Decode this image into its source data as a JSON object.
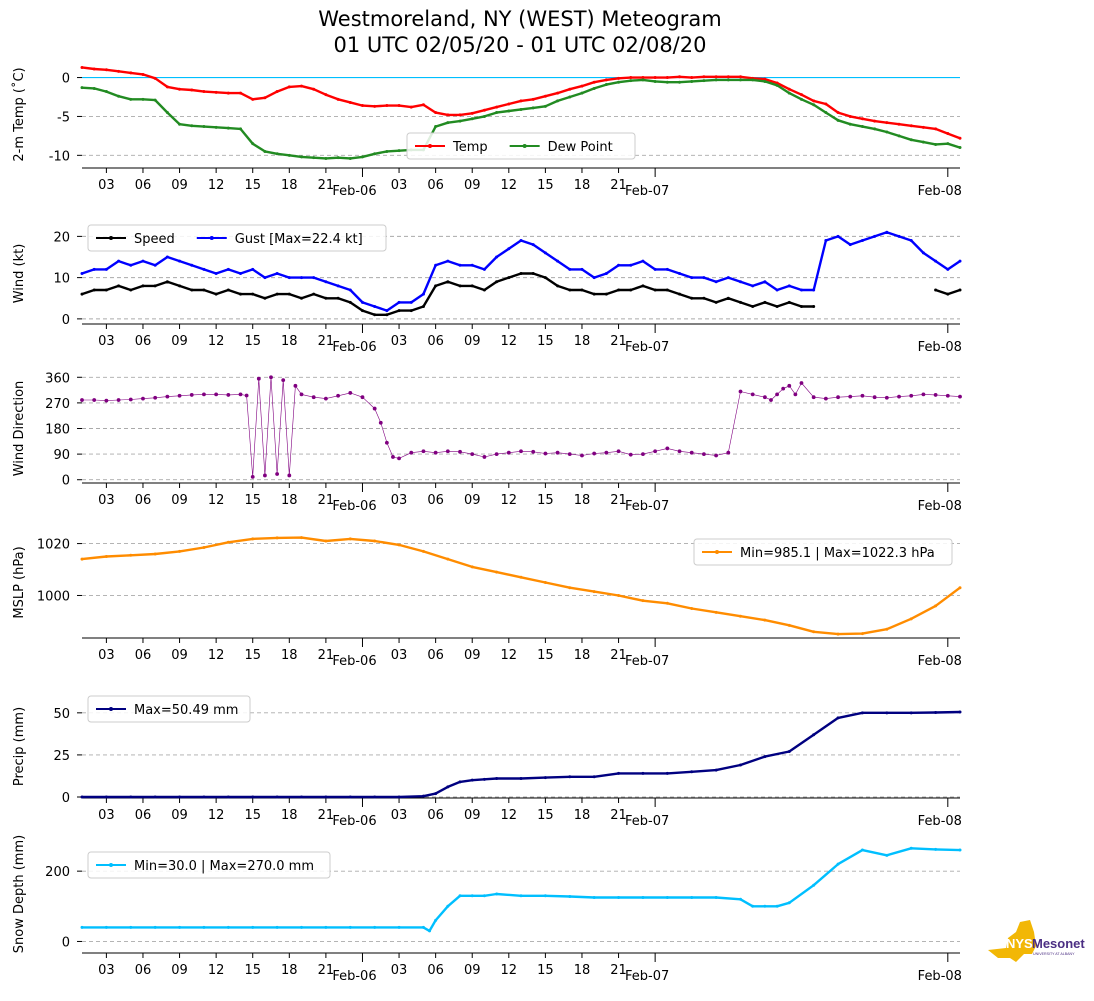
{
  "title_line1": "Westmoreland, NY (WEST) Meteogram",
  "title_line2": "01 UTC 02/05/20 - 01 UTC 02/08/20",
  "x_axis": {
    "hour_ticks": [
      "03",
      "06",
      "09",
      "12",
      "15",
      "18",
      "21",
      "03",
      "06",
      "09",
      "12",
      "15",
      "18",
      "21"
    ],
    "hour_tick_offsets_h": [
      2,
      5,
      8,
      11,
      14,
      17,
      20,
      26,
      29,
      32,
      35,
      38,
      41,
      44
    ],
    "date_ticks": [
      "Feb-06",
      "Feb-07",
      "Feb-08"
    ],
    "date_tick_offsets_h": [
      23,
      47,
      71
    ],
    "range_h": [
      0,
      72
    ]
  },
  "colors": {
    "temp": "#ff0000",
    "dew": "#228b22",
    "speed": "#000000",
    "gust": "#0000ff",
    "dir": "#800080",
    "mslp": "#ff8c00",
    "precip": "#000080",
    "snow": "#00bfff",
    "freeze": "#00bfff",
    "grid": "#aaaaaa"
  },
  "logo": {
    "text_main": "Mesonet",
    "text_nys": "NYS",
    "text_sub": "UNIVERSITY AT ALBANY"
  },
  "chart_data": [
    {
      "type": "line",
      "ylabel": "2-m Temp ($^\\circ$C)",
      "ylabel_display": "2-m Temp (˚C)",
      "ylim": [
        -11.5,
        2
      ],
      "yticks": [
        0,
        -5,
        -10
      ],
      "reference_line": 0,
      "legend": {
        "position": "lower-center",
        "entries": [
          "Temp",
          "Dew Point"
        ]
      },
      "x": [
        0,
        1,
        2,
        3,
        4,
        5,
        6,
        7,
        8,
        9,
        10,
        11,
        12,
        13,
        14,
        15,
        16,
        17,
        18,
        19,
        20,
        21,
        22,
        23,
        24,
        25,
        26,
        27,
        28,
        29,
        30,
        31,
        32,
        33,
        34,
        35,
        36,
        37,
        38,
        39,
        40,
        41,
        42,
        43,
        44,
        45,
        46,
        47,
        48,
        49,
        50,
        51,
        52,
        53,
        54,
        55,
        56,
        57,
        58,
        59,
        60,
        61,
        62,
        63,
        64,
        65,
        66,
        67,
        68,
        69,
        70,
        71,
        72
      ],
      "series": [
        {
          "name": "Temp",
          "values": [
            1.3,
            1.1,
            1.0,
            0.8,
            0.6,
            0.4,
            -0.1,
            -1.2,
            -1.5,
            -1.6,
            -1.8,
            -1.9,
            -2.0,
            -2.0,
            -2.8,
            -2.6,
            -1.8,
            -1.2,
            -1.1,
            -1.5,
            -2.2,
            -2.8,
            -3.2,
            -3.6,
            -3.7,
            -3.6,
            -3.6,
            -3.8,
            -3.5,
            -4.5,
            -4.8,
            -4.8,
            -4.6,
            -4.2,
            -3.8,
            -3.4,
            -3.0,
            -2.8,
            -2.4,
            -2.0,
            -1.5,
            -1.1,
            -0.6,
            -0.3,
            -0.1,
            0.0,
            0.0,
            0.0,
            0.0,
            0.1,
            0.0,
            0.1,
            0.1,
            0.1,
            0.1,
            -0.1,
            -0.2,
            -0.7,
            -1.5,
            -2.2,
            -3.0,
            -3.4,
            -4.5,
            -5.0,
            -5.3,
            -5.6,
            -5.8,
            -6.0,
            -6.2,
            -6.4,
            -6.6,
            -7.2,
            -7.8
          ]
        },
        {
          "name": "Dew Point",
          "values": [
            -1.3,
            -1.4,
            -1.8,
            -2.4,
            -2.8,
            -2.8,
            -2.9,
            -4.5,
            -6.0,
            -6.2,
            -6.3,
            -6.4,
            -6.5,
            -6.6,
            -8.5,
            -9.5,
            -9.8,
            -10.0,
            -10.2,
            -10.3,
            -10.4,
            -10.3,
            -10.4,
            -10.2,
            -9.8,
            -9.5,
            -9.4,
            -9.3,
            -9.3,
            -6.3,
            -5.8,
            -5.6,
            -5.3,
            -5.0,
            -4.5,
            -4.3,
            -4.1,
            -3.9,
            -3.7,
            -3.0,
            -2.5,
            -2.0,
            -1.4,
            -0.9,
            -0.6,
            -0.4,
            -0.3,
            -0.5,
            -0.6,
            -0.6,
            -0.5,
            -0.4,
            -0.3,
            -0.3,
            -0.3,
            -0.3,
            -0.5,
            -1.0,
            -2.0,
            -2.8,
            -3.5,
            -4.5,
            -5.5,
            -6.0,
            -6.3,
            -6.6,
            -7.0,
            -7.5,
            -8.0,
            -8.3,
            -8.6,
            -8.5,
            -9.0
          ]
        }
      ]
    },
    {
      "type": "line",
      "ylabel": "Wind (kt)",
      "ylim": [
        -1,
        23
      ],
      "yticks": [
        0,
        10,
        20
      ],
      "legend": {
        "position": "top-left",
        "entries": [
          "Speed",
          "Gust [Max=22.4 kt]"
        ]
      },
      "x": [
        0,
        1,
        2,
        3,
        4,
        5,
        6,
        7,
        8,
        9,
        10,
        11,
        12,
        13,
        14,
        15,
        16,
        17,
        18,
        19,
        20,
        21,
        22,
        23,
        24,
        25,
        26,
        27,
        28,
        29,
        30,
        31,
        32,
        33,
        34,
        35,
        36,
        37,
        38,
        39,
        40,
        41,
        42,
        43,
        44,
        45,
        46,
        47,
        48,
        49,
        50,
        51,
        52,
        53,
        54,
        55,
        56,
        57,
        58,
        59,
        60,
        61,
        62,
        63,
        64,
        65,
        66,
        67,
        68,
        69,
        70,
        71,
        72
      ],
      "series": [
        {
          "name": "Speed",
          "values": [
            6,
            7,
            7,
            8,
            7,
            8,
            8,
            9,
            8,
            7,
            7,
            6,
            7,
            6,
            6,
            5,
            6,
            6,
            5,
            6,
            5,
            5,
            4,
            2,
            1,
            1,
            2,
            2,
            3,
            8,
            9,
            8,
            8,
            7,
            9,
            10,
            11,
            11,
            10,
            8,
            7,
            7,
            6,
            6,
            7,
            7,
            8,
            7,
            7,
            6,
            5,
            5,
            4,
            5,
            4,
            3,
            4,
            3,
            4,
            3,
            3,
            null,
            null,
            null,
            null,
            null,
            null,
            null,
            null,
            null,
            7,
            6,
            7
          ]
        },
        {
          "name": "Gust [Max=22.4 kt]",
          "values": [
            11,
            12,
            12,
            14,
            13,
            14,
            13,
            15,
            14,
            13,
            12,
            11,
            12,
            11,
            12,
            10,
            11,
            10,
            10,
            10,
            9,
            8,
            7,
            4,
            3,
            2,
            4,
            4,
            6,
            13,
            14,
            13,
            13,
            12,
            15,
            17,
            19,
            18,
            16,
            14,
            12,
            12,
            10,
            11,
            13,
            13,
            14,
            12,
            12,
            11,
            10,
            10,
            9,
            10,
            9,
            8,
            9,
            7,
            8,
            7,
            7,
            19,
            20,
            18,
            19,
            20,
            21,
            20,
            19,
            16,
            14,
            12,
            14
          ]
        }
      ]
    },
    {
      "type": "scatter",
      "ylabel": "Wind Direction",
      "ylim": [
        -8,
        368
      ],
      "yticks": [
        0,
        90,
        180,
        270,
        360
      ],
      "x": [
        0,
        1,
        2,
        3,
        4,
        5,
        6,
        7,
        8,
        9,
        10,
        11,
        12,
        13,
        13.5,
        14,
        14.5,
        15,
        15.5,
        16,
        16.5,
        17,
        17.5,
        18,
        19,
        20,
        21,
        22,
        23,
        24,
        24.5,
        25,
        25.5,
        26,
        27,
        28,
        29,
        30,
        31,
        32,
        33,
        34,
        35,
        36,
        37,
        38,
        39,
        40,
        41,
        42,
        43,
        44,
        45,
        46,
        47,
        48,
        49,
        50,
        51,
        52,
        53,
        54,
        55,
        56,
        56.5,
        57,
        57.5,
        58,
        58.5,
        59,
        60,
        61,
        62,
        63,
        64,
        65,
        66,
        67,
        68,
        69,
        70,
        71,
        72
      ],
      "series": [
        {
          "name": "Direction",
          "values": [
            280,
            280,
            278,
            280,
            282,
            285,
            288,
            292,
            295,
            298,
            300,
            300,
            298,
            300,
            296,
            10,
            355,
            15,
            360,
            20,
            350,
            15,
            330,
            300,
            290,
            285,
            295,
            305,
            290,
            250,
            200,
            130,
            80,
            75,
            95,
            100,
            95,
            100,
            98,
            90,
            80,
            90,
            95,
            100,
            98,
            92,
            95,
            90,
            85,
            92,
            95,
            100,
            88,
            90,
            100,
            110,
            100,
            95,
            90,
            85,
            95,
            310,
            300,
            290,
            280,
            300,
            320,
            330,
            300,
            340,
            290,
            285,
            290,
            292,
            295,
            290,
            288,
            292,
            295,
            300,
            298,
            295,
            292
          ]
        }
      ]
    },
    {
      "type": "line",
      "ylabel": "MSLP (hPa)",
      "ylim": [
        984,
        1026
      ],
      "yticks": [
        1000,
        1020
      ],
      "legend": {
        "position": "top-right",
        "entries": [
          "Min=985.1 | Max=1022.3 hPa"
        ]
      },
      "x": [
        0,
        2,
        4,
        6,
        8,
        10,
        12,
        14,
        16,
        18,
        20,
        22,
        24,
        26,
        28,
        30,
        32,
        34,
        36,
        38,
        40,
        42,
        44,
        46,
        48,
        50,
        52,
        54,
        56,
        58,
        60,
        62,
        64,
        66,
        68,
        70,
        72
      ],
      "series": [
        {
          "name": "Min=985.1 | Max=1022.3 hPa",
          "values": [
            1014,
            1015,
            1015.5,
            1016,
            1017,
            1018.5,
            1020.5,
            1021.8,
            1022.2,
            1022.3,
            1021,
            1021.8,
            1021,
            1019.5,
            1017,
            1014,
            1011,
            1009,
            1007,
            1005,
            1003,
            1001.5,
            1000,
            998,
            997,
            995,
            993.5,
            992,
            990.5,
            988.5,
            986,
            985.1,
            985.3,
            987,
            991,
            996,
            1003
          ]
        }
      ]
    },
    {
      "type": "line",
      "ylabel": "Precip (mm)",
      "ylim": [
        0,
        60
      ],
      "yticks": [
        0,
        25,
        50
      ],
      "legend": {
        "position": "top-left",
        "entries": [
          "Max=50.49 mm"
        ]
      },
      "x": [
        0,
        2,
        4,
        6,
        8,
        10,
        12,
        14,
        16,
        18,
        20,
        22,
        24,
        26,
        28,
        29,
        30,
        31,
        32,
        33,
        34,
        36,
        38,
        40,
        42,
        44,
        46,
        48,
        50,
        52,
        54,
        56,
        58,
        60,
        62,
        64,
        66,
        68,
        70,
        72
      ],
      "series": [
        {
          "name": "Max=50.49 mm",
          "values": [
            0,
            0,
            0,
            0,
            0,
            0,
            0,
            0,
            0,
            0,
            0,
            0,
            0,
            0,
            0.5,
            2,
            6,
            9,
            10,
            10.5,
            11,
            11,
            11.5,
            12,
            12,
            14,
            14,
            14,
            15,
            16,
            19,
            24,
            27,
            37,
            47,
            50,
            50,
            50,
            50.2,
            50.49
          ]
        }
      ]
    },
    {
      "type": "line",
      "ylabel": "Snow Depth (mm)",
      "ylim": [
        -30,
        300
      ],
      "yticks": [
        0,
        200
      ],
      "legend": {
        "position": "top-left",
        "entries": [
          "Min=30.0 | Max=270.0 mm"
        ]
      },
      "x": [
        0,
        2,
        4,
        6,
        8,
        10,
        12,
        14,
        16,
        18,
        20,
        22,
        24,
        26,
        28,
        28.5,
        29,
        30,
        31,
        32,
        33,
        34,
        36,
        38,
        40,
        42,
        44,
        46,
        48,
        50,
        52,
        54,
        55,
        56,
        57,
        58,
        60,
        62,
        64,
        66,
        68,
        70,
        72
      ],
      "series": [
        {
          "name": "Min=30.0 | Max=270.0 mm",
          "values": [
            40,
            40,
            40,
            40,
            40,
            40,
            40,
            40,
            40,
            40,
            40,
            40,
            40,
            40,
            40,
            30,
            60,
            100,
            130,
            130,
            130,
            135,
            130,
            130,
            128,
            125,
            125,
            125,
            125,
            125,
            125,
            120,
            100,
            100,
            100,
            110,
            160,
            220,
            260,
            245,
            265,
            262,
            260
          ]
        }
      ]
    }
  ]
}
